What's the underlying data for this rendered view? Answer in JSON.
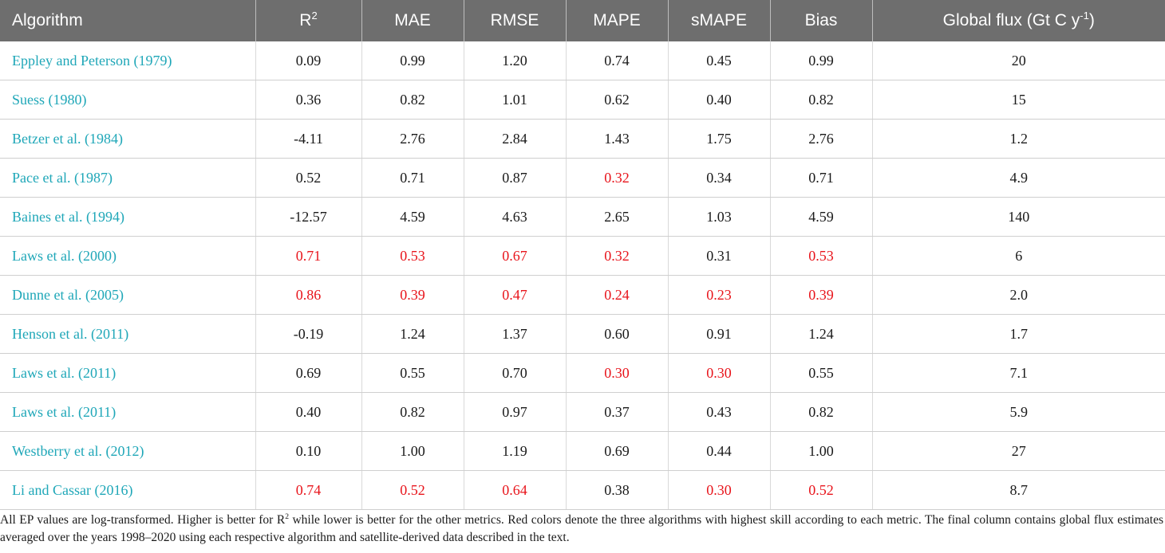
{
  "table": {
    "headers": {
      "algorithm": "Algorithm",
      "r2_base": "R",
      "r2_sup": "2",
      "mae": "MAE",
      "rmse": "RMSE",
      "mape": "MAPE",
      "smape": "sMAPE",
      "bias": "Bias",
      "flux_base": "Global flux (Gt C y",
      "flux_sup": "-1",
      "flux_close": ")"
    },
    "highlight_color": "#e8141b",
    "algorithm_color": "#1fa7b8",
    "rows": [
      {
        "name": "Eppley and Peterson (1979)",
        "r2": "0.09",
        "mae": "0.99",
        "rmse": "1.20",
        "mape": "0.74",
        "smape": "0.45",
        "bias": "0.99",
        "flux": "20",
        "hl": []
      },
      {
        "name": "Suess (1980)",
        "r2": "0.36",
        "mae": "0.82",
        "rmse": "1.01",
        "mape": "0.62",
        "smape": "0.40",
        "bias": "0.82",
        "flux": "15",
        "hl": []
      },
      {
        "name": "Betzer et al. (1984)",
        "r2": "-4.11",
        "mae": "2.76",
        "rmse": "2.84",
        "mape": "1.43",
        "smape": "1.75",
        "bias": "2.76",
        "flux": "1.2",
        "hl": []
      },
      {
        "name": "Pace et al. (1987)",
        "r2": "0.52",
        "mae": "0.71",
        "rmse": "0.87",
        "mape": "0.32",
        "smape": "0.34",
        "bias": "0.71",
        "flux": "4.9",
        "hl": [
          "mape"
        ]
      },
      {
        "name": "Baines et al. (1994)",
        "r2": "-12.57",
        "mae": "4.59",
        "rmse": "4.63",
        "mape": "2.65",
        "smape": "1.03",
        "bias": "4.59",
        "flux": "140",
        "hl": []
      },
      {
        "name": "Laws et al. (2000)",
        "r2": "0.71",
        "mae": "0.53",
        "rmse": "0.67",
        "mape": "0.32",
        "smape": "0.31",
        "bias": "0.53",
        "flux": "6",
        "hl": [
          "r2",
          "mae",
          "rmse",
          "mape",
          "bias"
        ]
      },
      {
        "name": "Dunne et al. (2005)",
        "r2": "0.86",
        "mae": "0.39",
        "rmse": "0.47",
        "mape": "0.24",
        "smape": "0.23",
        "bias": "0.39",
        "flux": "2.0",
        "hl": [
          "r2",
          "mae",
          "rmse",
          "mape",
          "smape",
          "bias"
        ]
      },
      {
        "name": "Henson et al. (2011)",
        "r2": "-0.19",
        "mae": "1.24",
        "rmse": "1.37",
        "mape": "0.60",
        "smape": "0.91",
        "bias": "1.24",
        "flux": "1.7",
        "hl": []
      },
      {
        "name": "Laws et al. (2011)",
        "r2": "0.69",
        "mae": "0.55",
        "rmse": "0.70",
        "mape": "0.30",
        "smape": "0.30",
        "bias": "0.55",
        "flux": "7.1",
        "hl": [
          "mape",
          "smape"
        ]
      },
      {
        "name": "Laws et al. (2011)",
        "r2": "0.40",
        "mae": "0.82",
        "rmse": "0.97",
        "mape": "0.37",
        "smape": "0.43",
        "bias": "0.82",
        "flux": "5.9",
        "hl": []
      },
      {
        "name": "Westberry et al. (2012)",
        "r2": "0.10",
        "mae": "1.00",
        "rmse": "1.19",
        "mape": "0.69",
        "smape": "0.44",
        "bias": "1.00",
        "flux": "27",
        "hl": []
      },
      {
        "name": "Li and Cassar (2016)",
        "r2": "0.74",
        "mae": "0.52",
        "rmse": "0.64",
        "mape": "0.38",
        "smape": "0.30",
        "bias": "0.52",
        "flux": "8.7",
        "hl": [
          "r2",
          "mae",
          "rmse",
          "smape",
          "bias"
        ]
      }
    ]
  },
  "footnote": {
    "part1": "All EP values are log-transformed. Higher is better for R",
    "sup": "2",
    "part2": " while lower is better for the other metrics. Red colors denote the three algorithms with highest skill according to each metric. The final column contains global flux estimates averaged over the years 1998–2020 using each respective algorithm and satellite-derived data described in the text."
  }
}
